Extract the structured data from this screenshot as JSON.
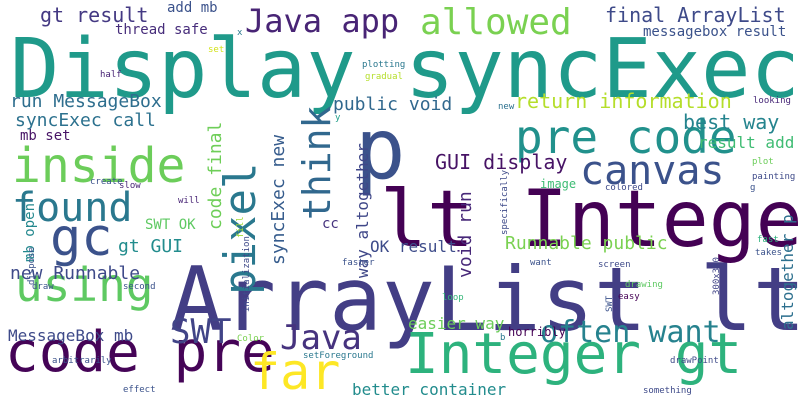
{
  "palette": {
    "background": "#ffffff",
    "scheme": "viridis"
  },
  "words": [
    {
      "text": "Display syncExec",
      "color": "#1f9a8a"
    },
    {
      "text": "ArrayList lt",
      "color": "#433e85"
    },
    {
      "text": "lt Integer",
      "color": "#440154"
    },
    {
      "text": "Integer gt",
      "color": "#2db27d"
    },
    {
      "text": "p",
      "color": "#3b528b"
    },
    {
      "text": "pre code",
      "color": "#21918c"
    },
    {
      "text": "code pre",
      "color": "#450457"
    },
    {
      "text": "gc",
      "color": "#3b528b"
    },
    {
      "text": "inside",
      "color": "#6ccd5a"
    },
    {
      "text": "using",
      "color": "#5ec962"
    },
    {
      "text": "found",
      "color": "#2a788e"
    },
    {
      "text": "canvas",
      "color": "#3b528b"
    },
    {
      "text": "pixel",
      "color": "#2a788e"
    },
    {
      "text": "allowed",
      "color": "#7ad151"
    },
    {
      "text": "far",
      "color": "#fde725"
    },
    {
      "text": "Java app",
      "color": "#482475"
    },
    {
      "text": "SWT",
      "color": "#414487"
    },
    {
      "text": "Java",
      "color": "#46337e"
    },
    {
      "text": "think",
      "color": "#31688e"
    },
    {
      "text": "often want",
      "color": "#26828e"
    },
    {
      "text": "gt result",
      "color": "#443983"
    },
    {
      "text": "final ArrayList",
      "color": "#3e4a89"
    },
    {
      "text": "best way",
      "color": "#25848e"
    },
    {
      "text": "return information",
      "color": "#b5de2b"
    },
    {
      "text": "GUI display",
      "color": "#471365"
    },
    {
      "text": "public void",
      "color": "#31688e"
    },
    {
      "text": "run MessageBox",
      "color": "#2e6e8e"
    },
    {
      "text": "syncExec call",
      "color": "#2c718e"
    },
    {
      "text": "syncExec new",
      "color": "#365c8d"
    },
    {
      "text": "code final",
      "color": "#6ece58"
    },
    {
      "text": "Runnable public",
      "color": "#7ad151"
    },
    {
      "text": "new Runnable",
      "color": "#3e4a89"
    },
    {
      "text": "gt GUI",
      "color": "#228c8d"
    },
    {
      "text": "way altogether",
      "color": "#3f4788"
    },
    {
      "text": "void run",
      "color": "#482979"
    },
    {
      "text": "OK result",
      "color": "#3e4c8a"
    },
    {
      "text": "result add",
      "color": "#3fbc73"
    },
    {
      "text": "altogether p",
      "color": "#2d708e"
    },
    {
      "text": "easier way",
      "color": "#6ccd5a"
    },
    {
      "text": "better container",
      "color": "#228c8d"
    },
    {
      "text": "MessageBox mb",
      "color": "#3e4a89"
    },
    {
      "text": "add mb",
      "color": "#3b528b"
    },
    {
      "text": "thread safe",
      "color": "#472d7b"
    },
    {
      "text": "messagebox result",
      "color": "#3b528b"
    },
    {
      "text": "SWT OK",
      "color": "#5ec962"
    },
    {
      "text": "mb set",
      "color": "#471365"
    },
    {
      "text": "mb open",
      "color": "#23888e"
    },
    {
      "text": "cc",
      "color": "#46337e"
    },
    {
      "text": "image",
      "color": "#3dbc74"
    },
    {
      "text": "horribly",
      "color": "#440154"
    },
    {
      "text": "set",
      "color": "#d2e21b"
    },
    {
      "text": "x",
      "color": "#2a788e"
    },
    {
      "text": "half",
      "color": "#482475"
    },
    {
      "text": "gradual",
      "color": "#b5de2b"
    },
    {
      "text": "plotting",
      "color": "#2a788e"
    },
    {
      "text": "new",
      "color": "#2c718e"
    },
    {
      "text": "y",
      "color": "#1f9e89"
    },
    {
      "text": "looking",
      "color": "#482878"
    },
    {
      "text": "plot",
      "color": "#6ccd5a"
    },
    {
      "text": "painting",
      "color": "#3e4a89"
    },
    {
      "text": "colored",
      "color": "#3e4a89"
    },
    {
      "text": "specifically",
      "color": "#3e4a89"
    },
    {
      "text": "fast",
      "color": "#2db27d"
    },
    {
      "text": "takes",
      "color": "#3b528b"
    },
    {
      "text": "g",
      "color": "#3b528b"
    },
    {
      "text": "want",
      "color": "#3b528b"
    },
    {
      "text": "screen",
      "color": "#3e4a89"
    },
    {
      "text": "easy",
      "color": "#440154"
    },
    {
      "text": "drawing",
      "color": "#5ec962"
    },
    {
      "text": "300x300",
      "color": "#414487"
    },
    {
      "text": "SWT",
      "color": "#3b528b"
    },
    {
      "text": "loop",
      "color": "#35b779"
    },
    {
      "text": "b",
      "color": "#2a788e"
    },
    {
      "text": "slow",
      "color": "#482475"
    },
    {
      "text": "create",
      "color": "#3b528b"
    },
    {
      "text": "will",
      "color": "#482475"
    },
    {
      "text": "dispose",
      "color": "#3b528b"
    },
    {
      "text": "initialization",
      "color": "#3e4a89"
    },
    {
      "text": "fill",
      "color": "#a2da37"
    },
    {
      "text": "faster",
      "color": "#3b528b"
    },
    {
      "text": "draw",
      "color": "#3b528b"
    },
    {
      "text": "second",
      "color": "#3b528b"
    },
    {
      "text": "arbitrarily",
      "color": "#3b528b"
    },
    {
      "text": "Color",
      "color": "#7ad151"
    },
    {
      "text": "setForeground",
      "color": "#2a788e"
    },
    {
      "text": "drawPoint",
      "color": "#3e4a89"
    },
    {
      "text": "effect",
      "color": "#3b528b"
    },
    {
      "text": "something",
      "color": "#3e4a89"
    }
  ]
}
